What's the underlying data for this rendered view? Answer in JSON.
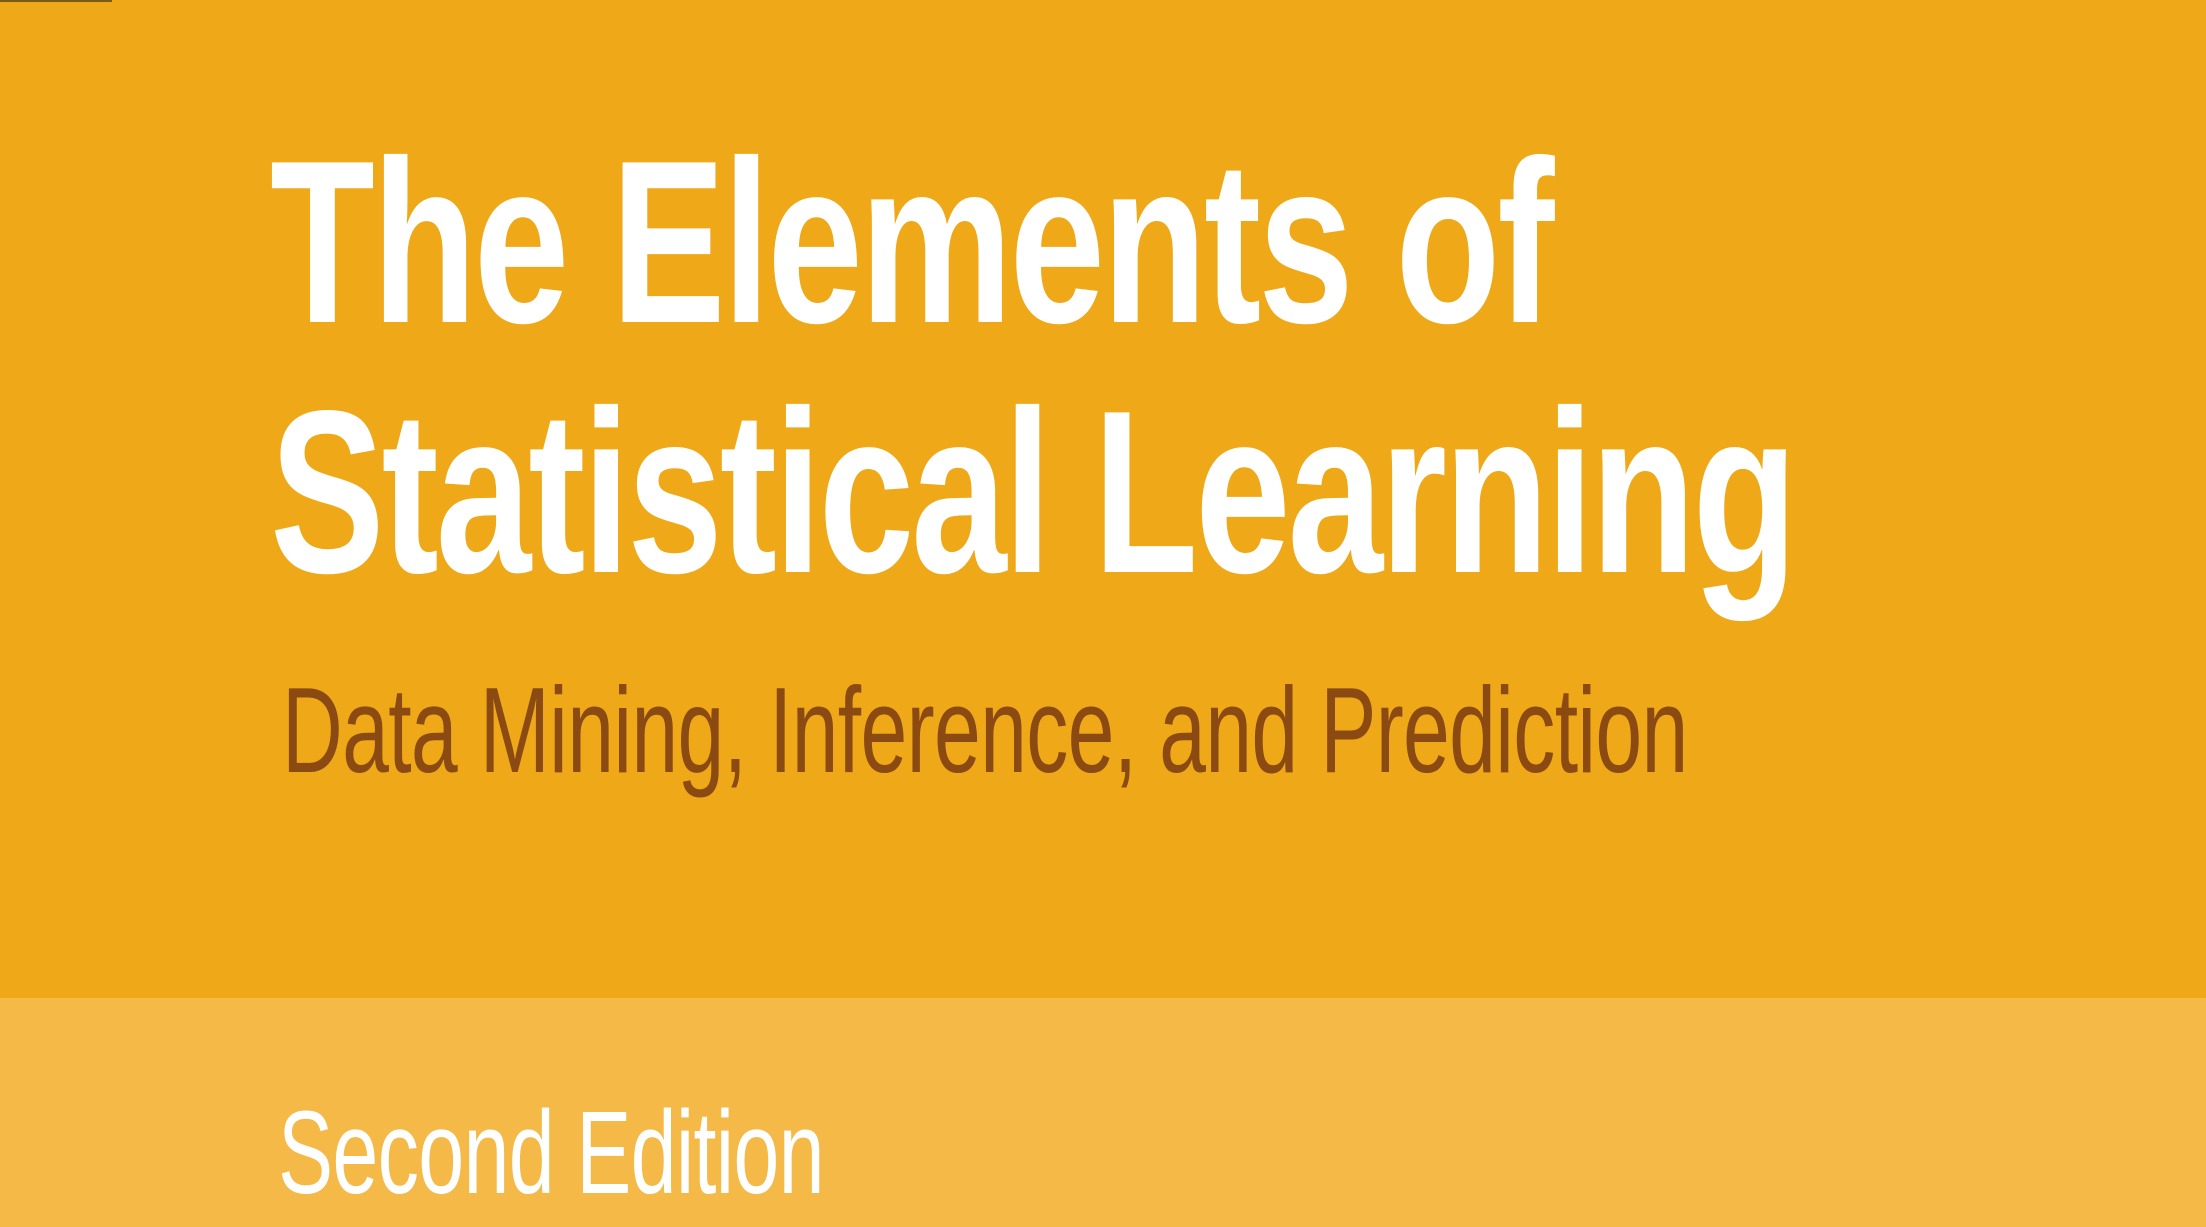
{
  "cover": {
    "title_line_1": "The Elements of",
    "title_line_2": "Statistical Learning",
    "subtitle": "Data Mining, Inference, and Prediction",
    "edition": "Second Edition",
    "colors": {
      "background": "#efa817",
      "band": "#f4b947",
      "title": "#ffffff",
      "subtitle": "#8a4a12"
    }
  }
}
